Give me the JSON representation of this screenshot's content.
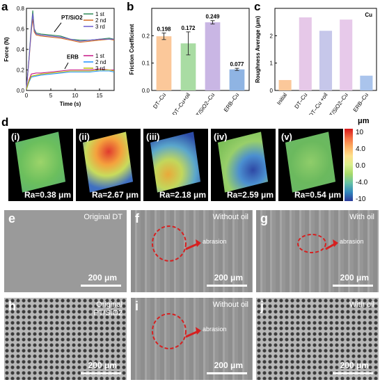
{
  "panel_a": {
    "letter": "a",
    "chart_data": {
      "type": "line",
      "xlabel": "Time (s)",
      "ylabel": "Force (N)",
      "xlim": [
        0,
        18
      ],
      "ylim": [
        0,
        0.8
      ],
      "xticks": [
        "0",
        "5",
        "10",
        "15"
      ],
      "yticks": [
        "0.0",
        "0.2",
        "0.4",
        "0.6",
        "0.8"
      ],
      "annotations": [
        "PT/SiO2",
        "ERB"
      ],
      "legend_top": [
        "1 st",
        "2 nd",
        "3 rd"
      ],
      "legend_bottom": [
        "1 st",
        "2 nd",
        "3 rd"
      ],
      "series": [
        {
          "name": "1 st",
          "group": "PT/SiO2",
          "color": "#2e8b57",
          "x": [
            0,
            0.5,
            1,
            1.3,
            1.6,
            2,
            3,
            5,
            7,
            9,
            11,
            13,
            15,
            17,
            18
          ],
          "y": [
            0.02,
            0.3,
            0.62,
            0.78,
            0.6,
            0.56,
            0.55,
            0.54,
            0.53,
            0.5,
            0.49,
            0.49,
            0.5,
            0.51,
            0.5
          ]
        },
        {
          "name": "2 nd",
          "group": "PT/SiO2",
          "color": "#d2691e",
          "x": [
            0,
            0.5,
            1,
            1.3,
            1.6,
            2,
            3,
            5,
            7,
            9,
            11,
            13,
            15,
            17,
            18
          ],
          "y": [
            0.02,
            0.28,
            0.58,
            0.7,
            0.57,
            0.54,
            0.53,
            0.52,
            0.51,
            0.49,
            0.47,
            0.48,
            0.49,
            0.5,
            0.49
          ]
        },
        {
          "name": "3 rd",
          "group": "PT/SiO2",
          "color": "#6a5acd",
          "x": [
            0,
            0.5,
            1,
            1.3,
            1.6,
            2,
            3,
            5,
            7,
            9,
            11,
            13,
            15,
            17,
            18
          ],
          "y": [
            0.02,
            0.29,
            0.6,
            0.75,
            0.59,
            0.55,
            0.54,
            0.53,
            0.52,
            0.5,
            0.48,
            0.49,
            0.5,
            0.5,
            0.5
          ]
        },
        {
          "name": "1 st",
          "group": "ERB",
          "color": "#c71585",
          "x": [
            0,
            0.5,
            1,
            2,
            3,
            5,
            7,
            9,
            11,
            13,
            15,
            17,
            18
          ],
          "y": [
            0.01,
            0.1,
            0.16,
            0.17,
            0.17,
            0.18,
            0.19,
            0.2,
            0.2,
            0.2,
            0.21,
            0.2,
            0.2
          ]
        },
        {
          "name": "2 nd",
          "group": "ERB",
          "color": "#1e90ff",
          "x": [
            0,
            0.5,
            1,
            2,
            3,
            5,
            7,
            9,
            11,
            13,
            15,
            17,
            18
          ],
          "y": [
            0.01,
            0.08,
            0.13,
            0.14,
            0.15,
            0.16,
            0.17,
            0.18,
            0.18,
            0.18,
            0.19,
            0.19,
            0.18
          ]
        },
        {
          "name": "3 rd",
          "group": "ERB",
          "color": "#b8b800",
          "x": [
            0,
            0.5,
            1,
            2,
            3,
            5,
            7,
            9,
            11,
            13,
            15,
            17,
            18
          ],
          "y": [
            0.01,
            0.09,
            0.14,
            0.15,
            0.16,
            0.17,
            0.18,
            0.19,
            0.19,
            0.19,
            0.2,
            0.2,
            0.19
          ]
        }
      ]
    }
  },
  "panel_b": {
    "letter": "b",
    "chart_data": {
      "type": "bar",
      "ylabel": "Friction Coefficient",
      "ylim": [
        0,
        0.3
      ],
      "yticks": [
        "0.0",
        "0.1",
        "0.2"
      ],
      "categories": [
        "DT–Cu",
        "DT–Cu+oil",
        "PT/SiO2–Cu",
        "ERB–Cu"
      ],
      "values": [
        0.198,
        0.172,
        0.249,
        0.077
      ],
      "errors": [
        0.012,
        0.042,
        0.006,
        0.004
      ],
      "value_labels": [
        "0.198",
        "0.172",
        "0.249",
        "0.077"
      ],
      "colors": [
        "#fbc89a",
        "#a9dca3",
        "#c9b6e4",
        "#8fb4e3"
      ]
    }
  },
  "panel_c": {
    "letter": "c",
    "chart_data": {
      "type": "bar",
      "ylabel": "Roughness Average (μm)",
      "ylim": [
        0,
        3
      ],
      "yticks": [
        "0",
        "1",
        "2"
      ],
      "title": "Cu",
      "categories": [
        "Initial",
        "DT–Cu",
        "DT–Cu +oil",
        "PT/SiO2–Cu",
        "ERB–Cu"
      ],
      "values": [
        0.38,
        2.67,
        2.18,
        2.59,
        0.54
      ],
      "colors": [
        "#fbc89a",
        "#e6c8e8",
        "#c6c7ea",
        "#e7c9ea",
        "#aac4ec"
      ]
    }
  },
  "panel_d": {
    "letter": "d",
    "items": [
      {
        "id": "(i)",
        "ra": "Ra=0.38 μm"
      },
      {
        "id": "(ii)",
        "ra": "Ra=2.67 μm"
      },
      {
        "id": "(iii)",
        "ra": "Ra=2.18 μm"
      },
      {
        "id": "(iv)",
        "ra": "Ra=2.59 μm"
      },
      {
        "id": "(v)",
        "ra": "Ra=0.54 μm"
      }
    ],
    "colorbar": {
      "unit": "μm",
      "ticks": [
        "10",
        "4.0",
        "0.0",
        "-4.0",
        "-10"
      ]
    }
  },
  "sem": [
    {
      "letter": "e",
      "caption": "Original DT",
      "scale": "200 μm"
    },
    {
      "letter": "f",
      "caption": "Without oil",
      "scale": "200 μm",
      "annotation": "abrasion"
    },
    {
      "letter": "g",
      "caption": "With oil",
      "scale": "200 μm",
      "annotation": "abrasion"
    },
    {
      "letter": "h",
      "caption_line1": "Original",
      "caption_line2": "PT/SiO2",
      "scale": "200 μm"
    },
    {
      "letter": "i",
      "caption": "Without oil",
      "scale": "200 μm",
      "annotation": "abrasion"
    },
    {
      "letter": "j",
      "caption": "With oil",
      "scale": "200 μm"
    }
  ]
}
